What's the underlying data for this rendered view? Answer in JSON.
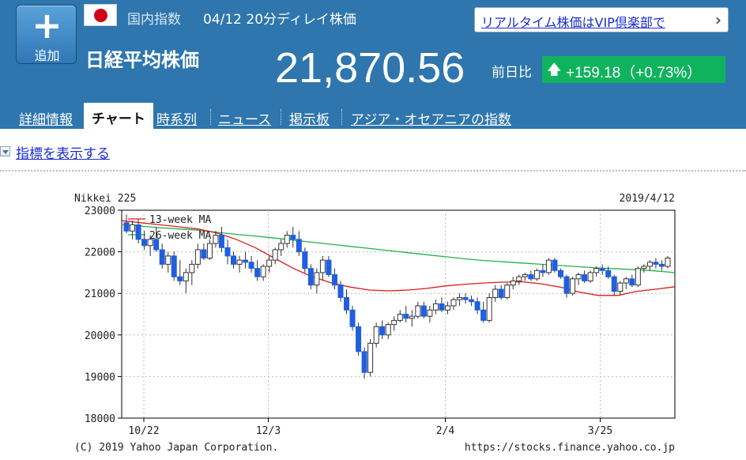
{
  "header": {
    "add_label": "追加",
    "category": "国内指数",
    "date_label": "04/12 20分ディレイ株価",
    "vip_link": "リアルタイム株価はVIP倶楽部で",
    "index_name": "日経平均株価",
    "price": "21,870.56",
    "prev_label": "前日比",
    "change": "+159.18（+0.73%）",
    "flag_icon": "japan-flag-icon",
    "change_color": "#10b35d"
  },
  "tabs": [
    {
      "label": "詳細情報"
    },
    {
      "label": "チャート",
      "active": true
    },
    {
      "label": "時系列"
    },
    {
      "label": "ニュース"
    },
    {
      "label": "掲示板"
    },
    {
      "label": "アジア・オセアニアの指数"
    }
  ],
  "indicator_toggle": "指標を表示する",
  "chart_data": {
    "type": "candlestick",
    "title": "Nikkei 225",
    "date": "2019/4/12",
    "legend": [
      "13-week MA",
      "26-week MA"
    ],
    "ylim": [
      18000,
      23000
    ],
    "yticks": [
      "23000",
      "22000",
      "21000",
      "20000",
      "19000",
      "18000"
    ],
    "xticks": [
      "10/22",
      "12/3",
      "2/4",
      "3/25"
    ],
    "copyright": "(C) 2019 Yahoo Japan Corporation.",
    "url": "https://stocks.finance.yahoo.co.jp",
    "ma13_color": "#dd1a1a",
    "ma26_color": "#22b24a",
    "up_color": "#ffffff",
    "down_color": "#1f5fe0",
    "candles": [
      [
        22700,
        22900,
        22450,
        22500
      ],
      [
        22500,
        22750,
        22300,
        22650
      ],
      [
        22650,
        22800,
        22200,
        22300
      ],
      [
        22300,
        22500,
        22050,
        22150
      ],
      [
        22150,
        22400,
        21900,
        22300
      ],
      [
        22300,
        22600,
        22000,
        22050
      ],
      [
        22050,
        22200,
        21600,
        21700
      ],
      [
        21700,
        22000,
        21500,
        21900
      ],
      [
        21900,
        22000,
        21300,
        21400
      ],
      [
        21400,
        21800,
        21200,
        21300
      ],
      [
        21300,
        21600,
        21000,
        21500
      ],
      [
        21500,
        21800,
        21200,
        21700
      ],
      [
        21700,
        22200,
        21600,
        22050
      ],
      [
        22050,
        22200,
        21800,
        21850
      ],
      [
        21850,
        22300,
        21800,
        22200
      ],
      [
        22200,
        22500,
        22100,
        22400
      ],
      [
        22400,
        22600,
        22000,
        22100
      ],
      [
        22100,
        22300,
        21700,
        21900
      ],
      [
        21900,
        22000,
        21600,
        21700
      ],
      [
        21700,
        21900,
        21500,
        21800
      ],
      [
        21800,
        22000,
        21600,
        21750
      ],
      [
        21750,
        21900,
        21500,
        21600
      ],
      [
        21600,
        21800,
        21300,
        21400
      ],
      [
        21400,
        21700,
        21300,
        21650
      ],
      [
        21650,
        21900,
        21500,
        21800
      ],
      [
        21800,
        22100,
        21700,
        22050
      ],
      [
        22050,
        22300,
        21900,
        22200
      ],
      [
        22200,
        22500,
        22100,
        22400
      ],
      [
        22400,
        22600,
        22100,
        22300
      ],
      [
        22300,
        22500,
        21900,
        22000
      ],
      [
        22000,
        22100,
        21500,
        21600
      ],
      [
        21600,
        21700,
        21100,
        21200
      ],
      [
        21200,
        21600,
        21000,
        21500
      ],
      [
        21500,
        21900,
        21300,
        21800
      ],
      [
        21800,
        21900,
        21400,
        21450
      ],
      [
        21450,
        21600,
        21100,
        21200
      ],
      [
        21200,
        21300,
        20800,
        20900
      ],
      [
        20900,
        21100,
        20500,
        20600
      ],
      [
        20600,
        20700,
        20100,
        20200
      ],
      [
        20200,
        20300,
        19500,
        19600
      ],
      [
        19600,
        19700,
        18950,
        19100
      ],
      [
        19100,
        19900,
        19000,
        19800
      ],
      [
        19800,
        20300,
        19700,
        20200
      ],
      [
        20200,
        20350,
        19900,
        20000
      ],
      [
        20000,
        20300,
        19900,
        20250
      ],
      [
        20250,
        20450,
        20100,
        20350
      ],
      [
        20350,
        20600,
        20300,
        20500
      ],
      [
        20500,
        20700,
        20300,
        20400
      ],
      [
        20400,
        20600,
        20200,
        20450
      ],
      [
        20450,
        20800,
        20400,
        20700
      ],
      [
        20700,
        20800,
        20400,
        20450
      ],
      [
        20450,
        20700,
        20300,
        20600
      ],
      [
        20600,
        20850,
        20500,
        20750
      ],
      [
        20750,
        20900,
        20550,
        20600
      ],
      [
        20600,
        20800,
        20500,
        20700
      ],
      [
        20700,
        20900,
        20600,
        20850
      ],
      [
        20850,
        21000,
        20700,
        20900
      ],
      [
        20900,
        21000,
        20750,
        20850
      ],
      [
        20850,
        20950,
        20700,
        20800
      ],
      [
        20800,
        20900,
        20500,
        20600
      ],
      [
        20600,
        20800,
        20300,
        20350
      ],
      [
        20350,
        21000,
        20300,
        20900
      ],
      [
        20900,
        21200,
        20800,
        21100
      ],
      [
        21100,
        21200,
        20850,
        20900
      ],
      [
        20900,
        21250,
        20850,
        21200
      ],
      [
        21200,
        21400,
        21100,
        21300
      ],
      [
        21300,
        21450,
        21200,
        21400
      ],
      [
        21400,
        21500,
        21300,
        21450
      ],
      [
        21450,
        21550,
        21300,
        21350
      ],
      [
        21350,
        21600,
        21300,
        21550
      ],
      [
        21550,
        21700,
        21400,
        21500
      ],
      [
        21500,
        21850,
        21450,
        21800
      ],
      [
        21800,
        21850,
        21500,
        21550
      ],
      [
        21550,
        21600,
        21350,
        21400
      ],
      [
        21400,
        21450,
        20900,
        21000
      ],
      [
        21000,
        21400,
        20950,
        21350
      ],
      [
        21350,
        21500,
        21200,
        21450
      ],
      [
        21450,
        21550,
        21250,
        21300
      ],
      [
        21300,
        21550,
        21250,
        21500
      ],
      [
        21500,
        21650,
        21400,
        21600
      ],
      [
        21600,
        21700,
        21450,
        21550
      ],
      [
        21550,
        21650,
        21350,
        21400
      ],
      [
        21400,
        21450,
        20950,
        21050
      ],
      [
        21050,
        21300,
        20950,
        21250
      ],
      [
        21250,
        21400,
        21100,
        21350
      ],
      [
        21350,
        21450,
        21150,
        21200
      ],
      [
        21200,
        21650,
        21150,
        21600
      ],
      [
        21600,
        21700,
        21500,
        21650
      ],
      [
        21650,
        21800,
        21550,
        21750
      ],
      [
        21750,
        21850,
        21600,
        21700
      ],
      [
        21700,
        21800,
        21550,
        21650
      ],
      [
        21650,
        21900,
        21600,
        21850
      ]
    ],
    "ma13": [
      22750,
      22700,
      22650,
      22600,
      22550,
      22450,
      22300,
      22100,
      21850,
      21600,
      21400,
      21250,
      21150,
      21080,
      21060,
      21080,
      21120,
      21180,
      21220,
      21250,
      21270,
      21280,
      21230,
      21150,
      21030,
      20950,
      20950,
      21050,
      21100,
      21160
    ],
    "ma26": [
      22650,
      22620,
      22580,
      22550,
      22520,
      22470,
      22420,
      22380,
      22330,
      22280,
      22230,
      22180,
      22130,
      22080,
      22030,
      21980,
      21930,
      21880,
      21830,
      21790,
      21760,
      21730,
      21700,
      21670,
      21640,
      21610,
      21590,
      21570,
      21540,
      21500
    ]
  }
}
